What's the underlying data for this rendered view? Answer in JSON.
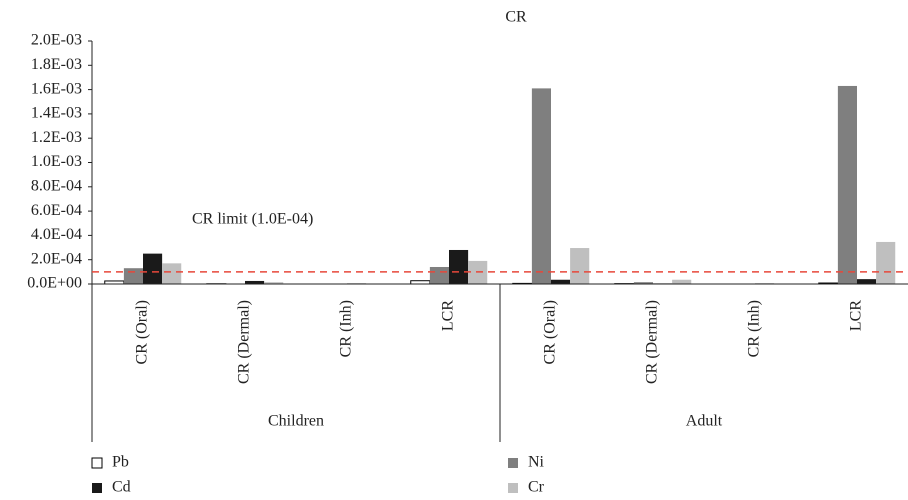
{
  "chart_data": {
    "type": "bar",
    "title": "CR",
    "categories": [
      "CR (Oral)",
      "CR (Dermal)",
      "CR (Inh)",
      "LCR",
      "CR (Oral)",
      "CR (Dermal)",
      "CR (Inh)",
      "LCR"
    ],
    "groups": [
      "Children",
      "Adult"
    ],
    "series": [
      {
        "name": "Pb",
        "color": "#ffffff",
        "edgecolor": "#000000",
        "values": [
          2.5e-05,
          2e-06,
          0,
          2.7e-05,
          5e-06,
          3e-06,
          0,
          8e-06
        ]
      },
      {
        "name": "Ni",
        "color": "#7f7f7f",
        "values": [
          0.00013,
          4e-06,
          0,
          0.00014,
          0.00161,
          1.5e-05,
          0,
          0.00163
        ]
      },
      {
        "name": "Cd",
        "color": "#1a1a1a",
        "values": [
          0.00025,
          2.5e-05,
          5e-06,
          0.00028,
          3.5e-05,
          5e-06,
          5e-06,
          4e-05
        ]
      },
      {
        "name": "Cr",
        "color": "#bfbfbf",
        "values": [
          0.00017,
          1.5e-05,
          0,
          0.00019,
          0.000296,
          3.5e-05,
          0,
          0.000346
        ]
      }
    ],
    "limit": 0.0001,
    "limit_label": "CR limit (1.0E-04)",
    "limit_color": "#e8473a",
    "ylim": [
      0,
      0.002
    ],
    "yticks": [
      {
        "value": 0,
        "label": "0.0E+00"
      },
      {
        "value": 0.0002,
        "label": "2.0E-04"
      },
      {
        "value": 0.0004,
        "label": "4.0E-04"
      },
      {
        "value": 0.0006,
        "label": "6.0E-04"
      },
      {
        "value": 0.0008,
        "label": "8.0E-04"
      },
      {
        "value": 0.001,
        "label": "1.0E-03"
      },
      {
        "value": 0.0012,
        "label": "1.2E-03"
      },
      {
        "value": 0.0014,
        "label": "1.4E-03"
      },
      {
        "value": 0.0016,
        "label": "1.6E-03"
      },
      {
        "value": 0.0018,
        "label": "1.8E-03"
      },
      {
        "value": 0.002,
        "label": "2.0E-03"
      }
    ],
    "grid": false
  }
}
